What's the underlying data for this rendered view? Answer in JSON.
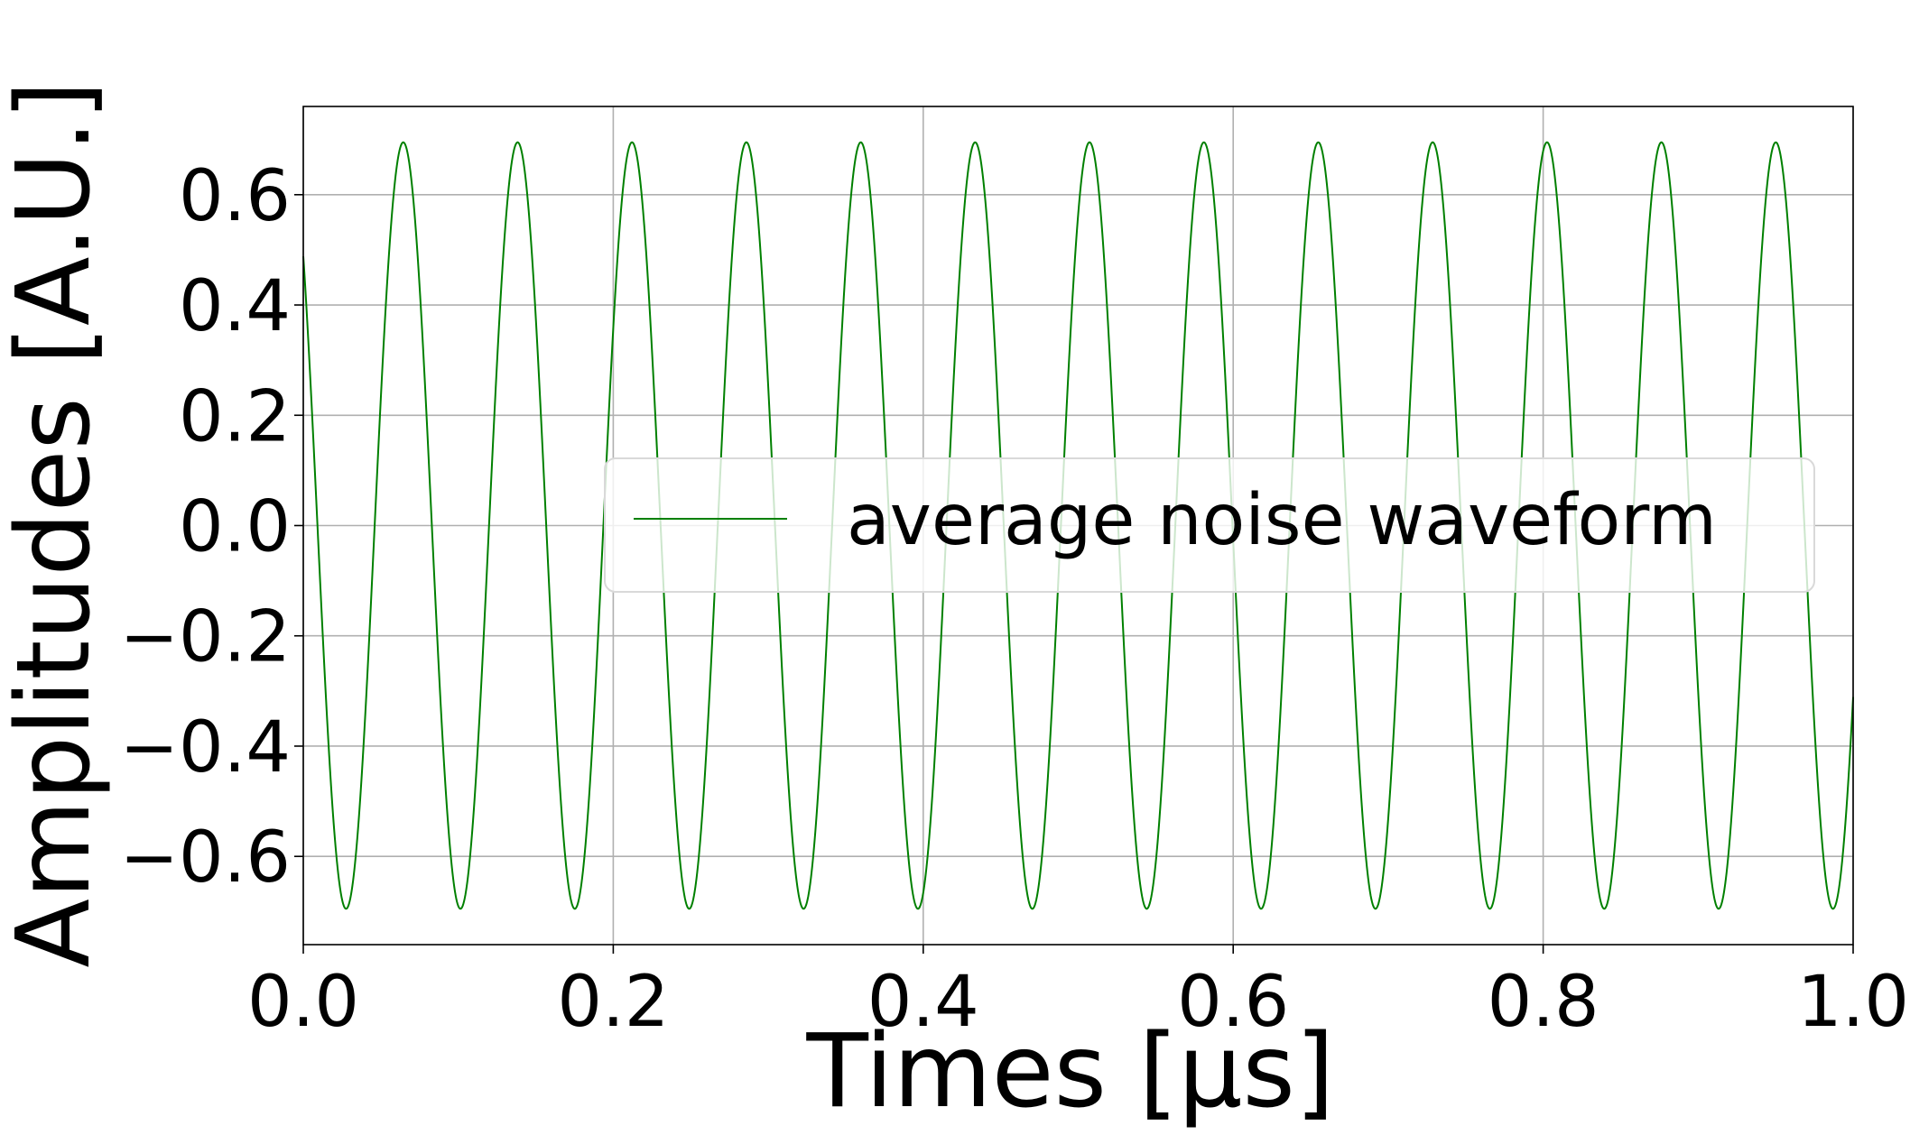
{
  "chart_data": {
    "type": "line",
    "xlabel": "Times [μs]",
    "ylabel": "Amplitudes [A.U.]",
    "xlim": [
      0.0,
      1.0
    ],
    "ylim": [
      -0.76,
      0.76
    ],
    "x_ticks": [
      0.0,
      0.2,
      0.4,
      0.6,
      0.8,
      1.0
    ],
    "x_tick_labels": [
      "0.0",
      "0.2",
      "0.4",
      "0.6",
      "0.8",
      "1.0"
    ],
    "y_ticks": [
      -0.6,
      -0.4,
      -0.2,
      0.0,
      0.2,
      0.4,
      0.6
    ],
    "y_tick_labels": [
      "−0.6",
      "−0.4",
      "−0.2",
      "0.0",
      "0.2",
      "0.4",
      "0.6"
    ],
    "grid": true,
    "legend": {
      "position": "center-right",
      "entries": [
        "average noise waveform"
      ]
    },
    "series": [
      {
        "name": "average noise waveform",
        "color": "#008000",
        "amplitude": 0.695,
        "period": 0.0738,
        "first_peak_x": 0.0645
      }
    ]
  }
}
